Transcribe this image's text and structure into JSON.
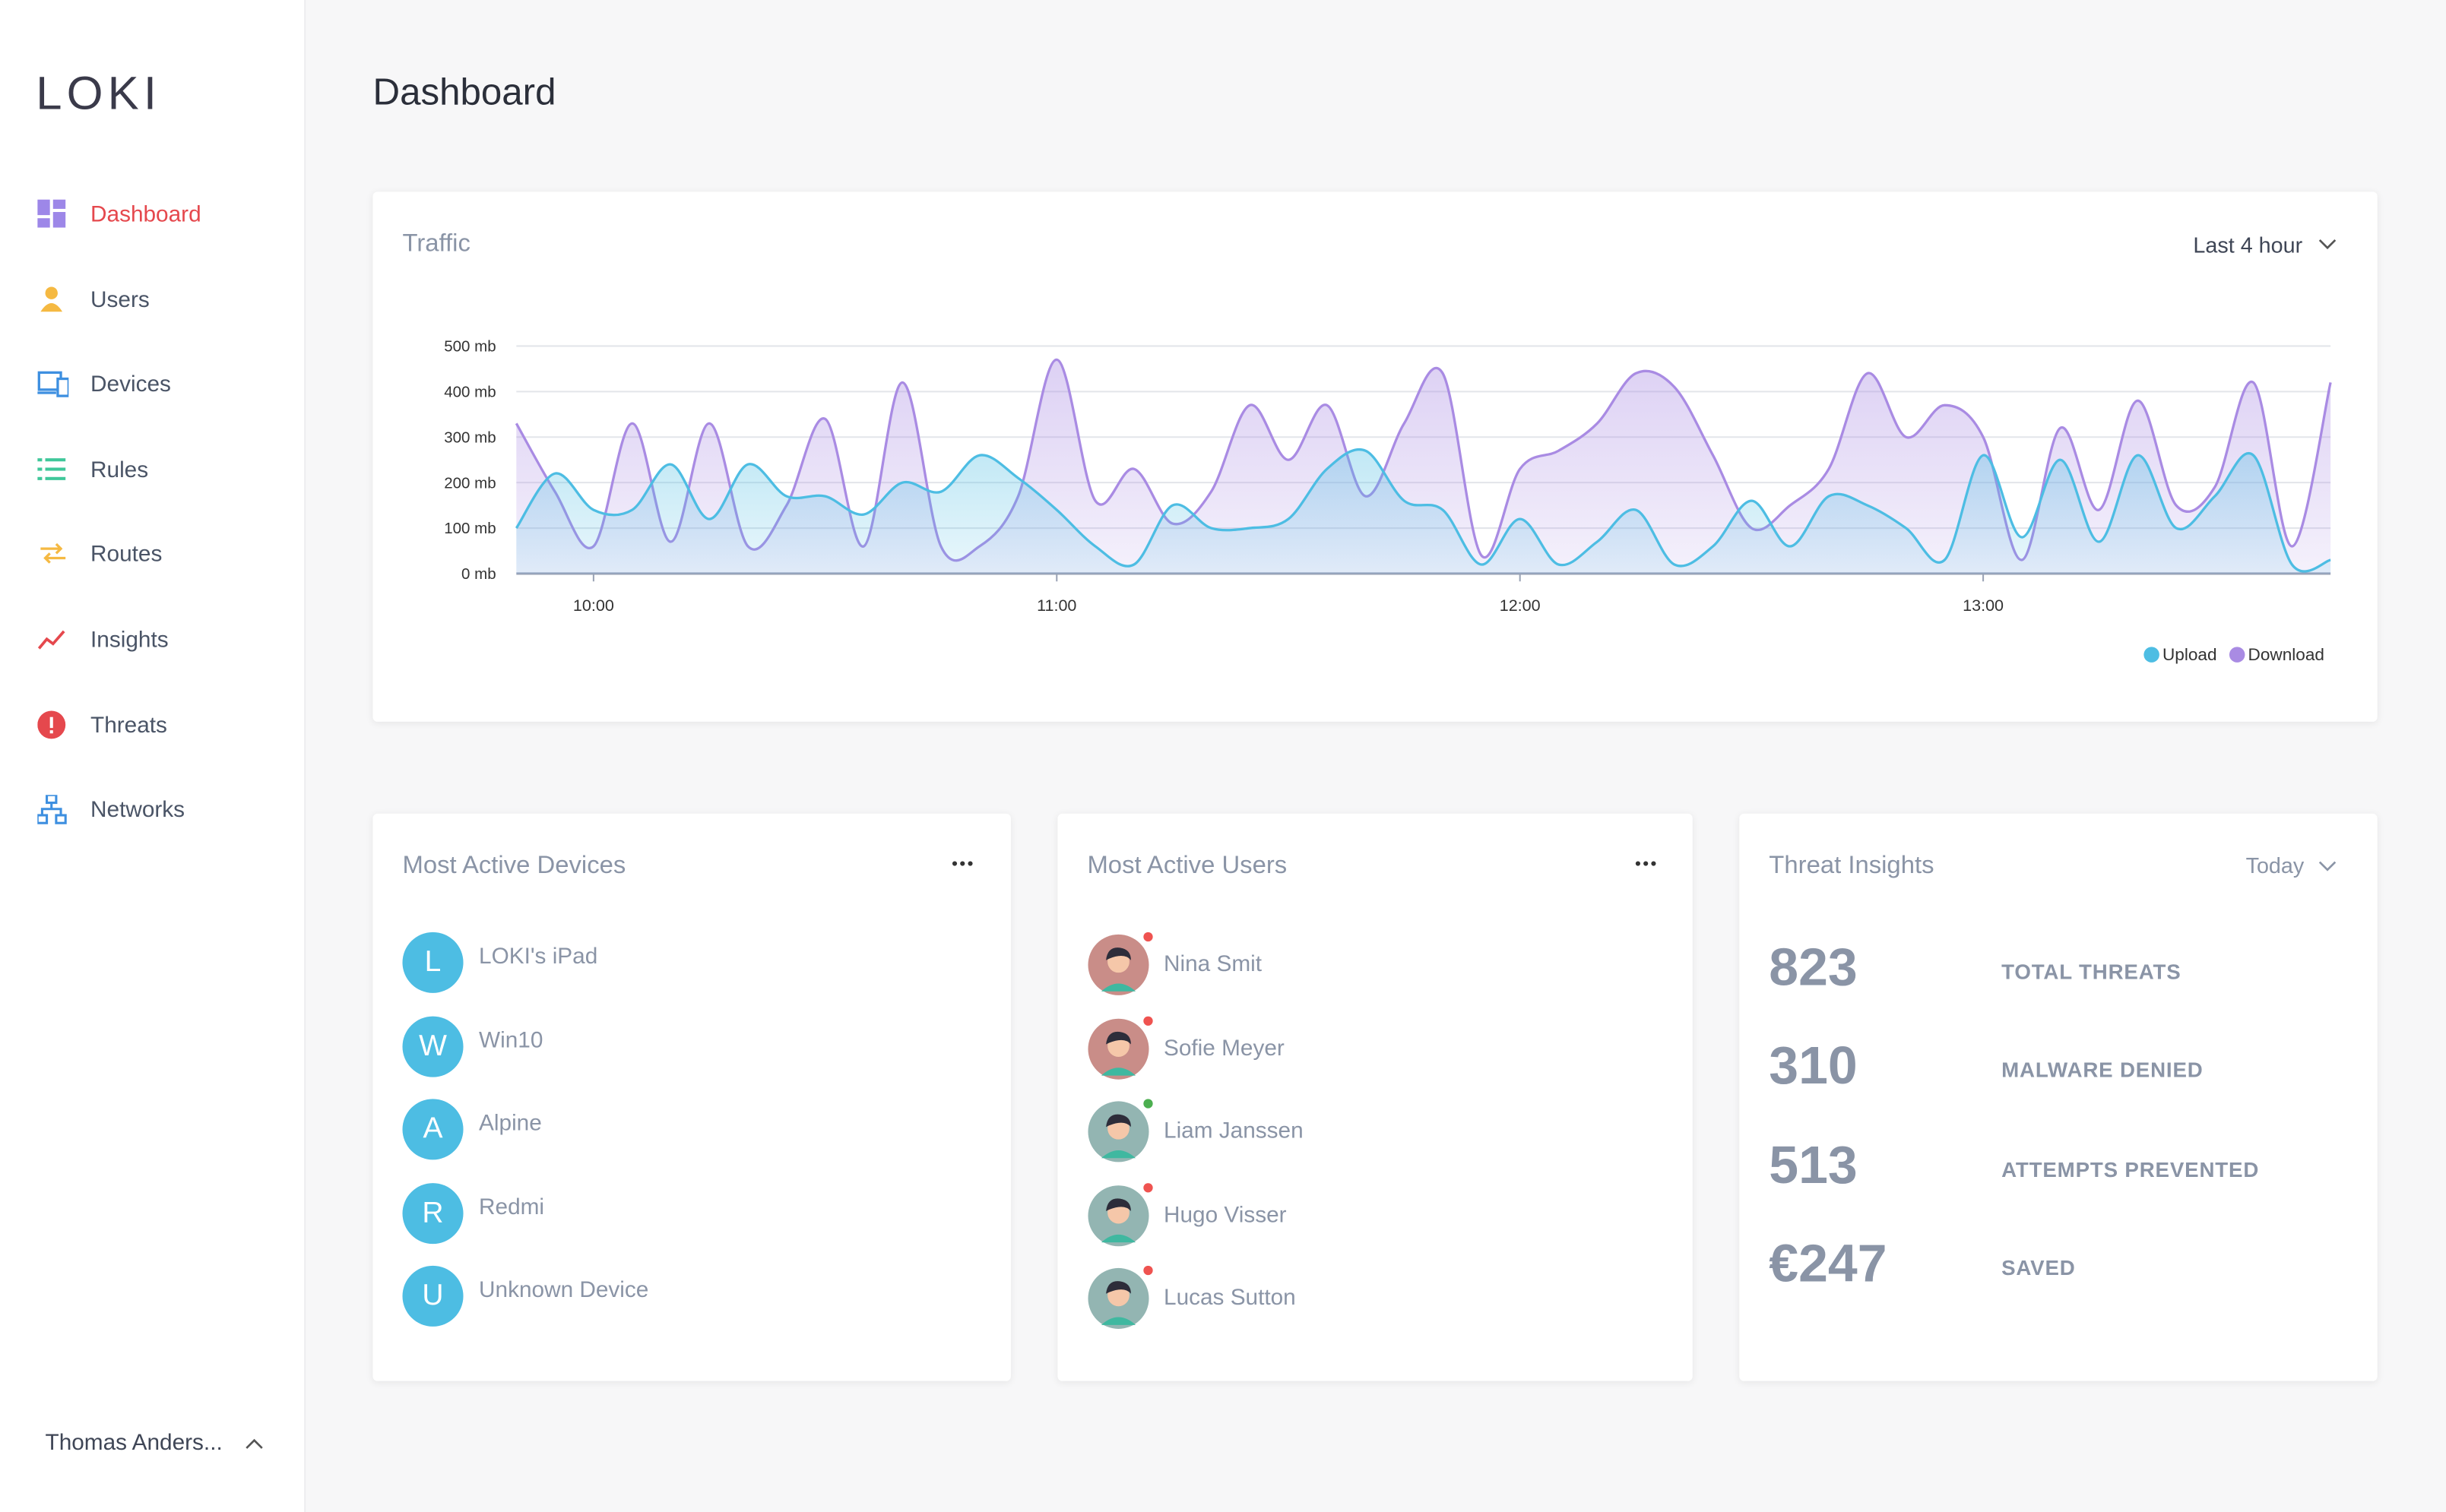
{
  "sidebar": {
    "logo": "LOKI",
    "nav": [
      {
        "label": "Dashboard",
        "active": true
      },
      {
        "label": "Users"
      },
      {
        "label": "Devices"
      },
      {
        "label": "Rules"
      },
      {
        "label": "Routes"
      },
      {
        "label": "Insights"
      },
      {
        "label": "Threats"
      },
      {
        "label": "Networks"
      }
    ],
    "user": "Thomas Anders..."
  },
  "header": {
    "title": "Dashboard"
  },
  "traffic": {
    "title": "Traffic",
    "range": "Last 4 hour",
    "chart_data": {
      "type": "area",
      "x": [
        590,
        595,
        600,
        605,
        610,
        615,
        620,
        625,
        630,
        635,
        640,
        645,
        650,
        655,
        660,
        665,
        670,
        675,
        680,
        685,
        690,
        695,
        700,
        705,
        710,
        715,
        720,
        725,
        730,
        735,
        740,
        745,
        750,
        755,
        760,
        765,
        770,
        775,
        780,
        785,
        790,
        795,
        800,
        805,
        810,
        815,
        820,
        825
      ],
      "xlim": [
        590,
        825
      ],
      "xticks": [
        {
          "value": 600,
          "label": "10:00"
        },
        {
          "value": 660,
          "label": "11:00"
        },
        {
          "value": 720,
          "label": "12:00"
        },
        {
          "value": 780,
          "label": "13:00"
        }
      ],
      "ylim": [
        0,
        500
      ],
      "yticks": [
        {
          "value": 0,
          "label": "0 mb"
        },
        {
          "value": 100,
          "label": "100 mb"
        },
        {
          "value": 200,
          "label": "200 mb"
        },
        {
          "value": 300,
          "label": "300 mb"
        },
        {
          "value": 400,
          "label": "400 mb"
        },
        {
          "value": 500,
          "label": "500 mb"
        }
      ],
      "grid": true,
      "legend": "bottom-right",
      "series": [
        {
          "name": "Upload",
          "color": "#4dbde3",
          "values": [
            100,
            220,
            140,
            140,
            240,
            120,
            240,
            170,
            170,
            130,
            200,
            180,
            260,
            210,
            140,
            60,
            20,
            150,
            100,
            100,
            120,
            230,
            270,
            160,
            140,
            20,
            120,
            20,
            70,
            140,
            20,
            60,
            160,
            60,
            170,
            150,
            100,
            30,
            260,
            80,
            250,
            70,
            260,
            100,
            170,
            260,
            20,
            30
          ]
        },
        {
          "name": "Download",
          "color": "#a98be3",
          "values": [
            330,
            180,
            60,
            330,
            70,
            330,
            60,
            150,
            340,
            60,
            420,
            60,
            60,
            170,
            470,
            160,
            230,
            110,
            180,
            370,
            250,
            370,
            170,
            330,
            440,
            40,
            230,
            270,
            330,
            440,
            410,
            260,
            100,
            150,
            230,
            440,
            300,
            370,
            300,
            30,
            320,
            140,
            380,
            150,
            190,
            420,
            60,
            420
          ]
        }
      ]
    }
  },
  "devices": {
    "title": "Most Active Devices",
    "items": [
      {
        "initial": "L",
        "name": "LOKI's iPad"
      },
      {
        "initial": "W",
        "name": "Win10"
      },
      {
        "initial": "A",
        "name": "Alpine"
      },
      {
        "initial": "R",
        "name": "Redmi"
      },
      {
        "initial": "U",
        "name": "Unknown Device"
      }
    ]
  },
  "users": {
    "title": "Most Active Users",
    "items": [
      {
        "name": "Nina Smit",
        "status_color": "#ef5350",
        "avatar_color": "#c98d88"
      },
      {
        "name": "Sofie Meyer",
        "status_color": "#ef5350",
        "avatar_color": "#c98d88"
      },
      {
        "name": "Liam Janssen",
        "status_color": "#4caf50",
        "avatar_color": "#93b5b2"
      },
      {
        "name": "Hugo Visser",
        "status_color": "#ef5350",
        "avatar_color": "#93b5b2"
      },
      {
        "name": "Lucas Sutton",
        "status_color": "#ef5350",
        "avatar_color": "#93b5b2"
      }
    ]
  },
  "threats": {
    "title": "Threat Insights",
    "range": "Today",
    "items": [
      {
        "value": "823",
        "label": "TOTAL THREATS"
      },
      {
        "value": "310",
        "label": "MALWARE DENIED"
      },
      {
        "value": "513",
        "label": "ATTEMPTS PREVENTED"
      },
      {
        "value": "€247",
        "label": "SAVED"
      }
    ]
  }
}
